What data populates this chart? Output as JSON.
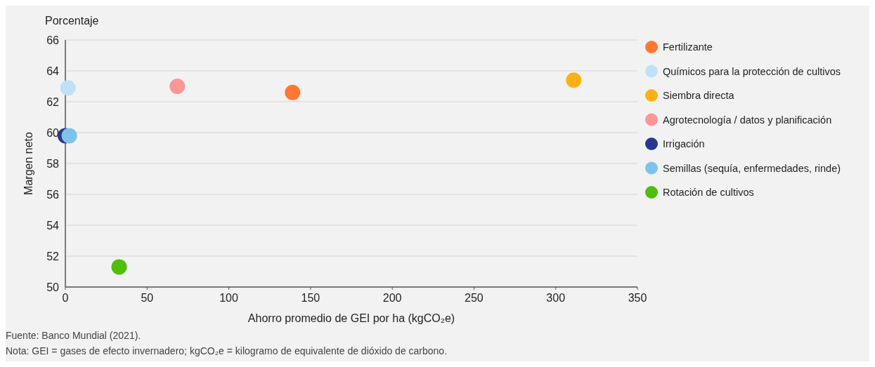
{
  "chart_data": {
    "type": "scatter",
    "subtitle": "Porcentaje",
    "xlabel": "Ahorro promedio de GEI por ha (kgCO₂e)",
    "ylabel": "Margen neto",
    "xlim": [
      0,
      350
    ],
    "xticks": [
      0,
      50,
      100,
      150,
      200,
      250,
      300,
      350
    ],
    "ylim": [
      50,
      66
    ],
    "yticks": [
      50,
      52,
      54,
      56,
      58,
      60,
      62,
      64,
      66
    ],
    "grid": "y",
    "legend": "right",
    "marker": "circle",
    "series": [
      {
        "name": "Fertilizante",
        "color": "#ff7733",
        "x": [
          139
        ],
        "values": [
          62.6
        ]
      },
      {
        "name": "Químicos para la protección de cultivos",
        "color": "#c0e0f5",
        "x": [
          1.6
        ],
        "values": [
          62.9
        ]
      },
      {
        "name": "Siembra directa",
        "color": "#fbb116",
        "x": [
          311
        ],
        "values": [
          63.4
        ]
      },
      {
        "name": "Agrotecnología / datos y planificación",
        "color": "#fe9596",
        "x": [
          68.5
        ],
        "values": [
          63.0
        ]
      },
      {
        "name": "Irrigación",
        "color": "#283890",
        "x": [
          0
        ],
        "values": [
          59.8
        ]
      },
      {
        "name": "Semillas (sequía, enfermedades, rinde)",
        "color": "#7fc2ec",
        "x": [
          2.4
        ],
        "values": [
          59.8
        ]
      },
      {
        "name": "Rotación de cultivos",
        "color": "#4fbe0a",
        "x": [
          32.9
        ],
        "values": [
          51.3
        ]
      }
    ],
    "annotations": [
      "Fuente: Banco Mundial (2021).",
      "Nota: GEI = gases de efecto invernadero; kgCO₂e = kilogramo de equivalente de dióxido de carbono."
    ]
  }
}
